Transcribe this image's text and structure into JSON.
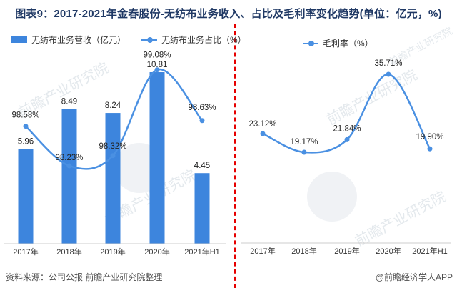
{
  "title": "图表9：2017-2021年金春股份-无纺布业务收入、占比及毛利率变化趋势(单位：亿元，%)",
  "footer": {
    "source": "资料来源：公司公报 前瞻产业研究院整理",
    "credit": "@前瞻经济学人APP"
  },
  "watermark": {
    "text": "前瞻产业研究院"
  },
  "colors": {
    "bar": "#3d85dd",
    "line": "#4a90e2",
    "title": "#1f3864",
    "divider": "#e60000",
    "axis": "#cccccc",
    "label": "#222222",
    "footer": "#4d4d4d"
  },
  "chart_data": [
    {
      "type": "bar",
      "categories": [
        "2017年",
        "2018年",
        "2019年",
        "2020年",
        "2021年H1"
      ],
      "series": [
        {
          "name": "无纺布业务营收（亿元）",
          "type": "bar",
          "values": [
            5.96,
            8.49,
            8.24,
            10.81,
            4.45
          ],
          "labels": [
            "5.96",
            "8.49",
            "8.24",
            "10.81",
            "4.45"
          ]
        },
        {
          "name": "无纺布业务占比（%）",
          "type": "line",
          "values": [
            98.58,
            98.23,
            98.32,
            99.08,
            98.63
          ],
          "labels": [
            "98.58%",
            "98.23%",
            "98.32%",
            "99.08%",
            "98.63%"
          ],
          "label_dy": [
            12,
            8,
            10,
            17,
            15
          ]
        }
      ],
      "ylim_bar": [
        0,
        12.5
      ],
      "ylim_line": [
        97.8,
        99.3
      ],
      "grid": false,
      "legend_position": "top"
    },
    {
      "type": "line",
      "categories": [
        "2017年",
        "2018年",
        "2019年",
        "2020年",
        "2021年H1"
      ],
      "series": [
        {
          "name": "毛利率（%）",
          "type": "line",
          "values": [
            23.12,
            19.17,
            21.84,
            35.71,
            19.9
          ],
          "labels": [
            "23.12%",
            "19.17%",
            "21.84%",
            "35.71%",
            "19.90%"
          ],
          "label_dy": [
            10,
            11,
            12,
            12,
            13
          ]
        }
      ],
      "ylim": [
        15,
        40
      ],
      "grid": false,
      "legend_position": "top"
    }
  ]
}
